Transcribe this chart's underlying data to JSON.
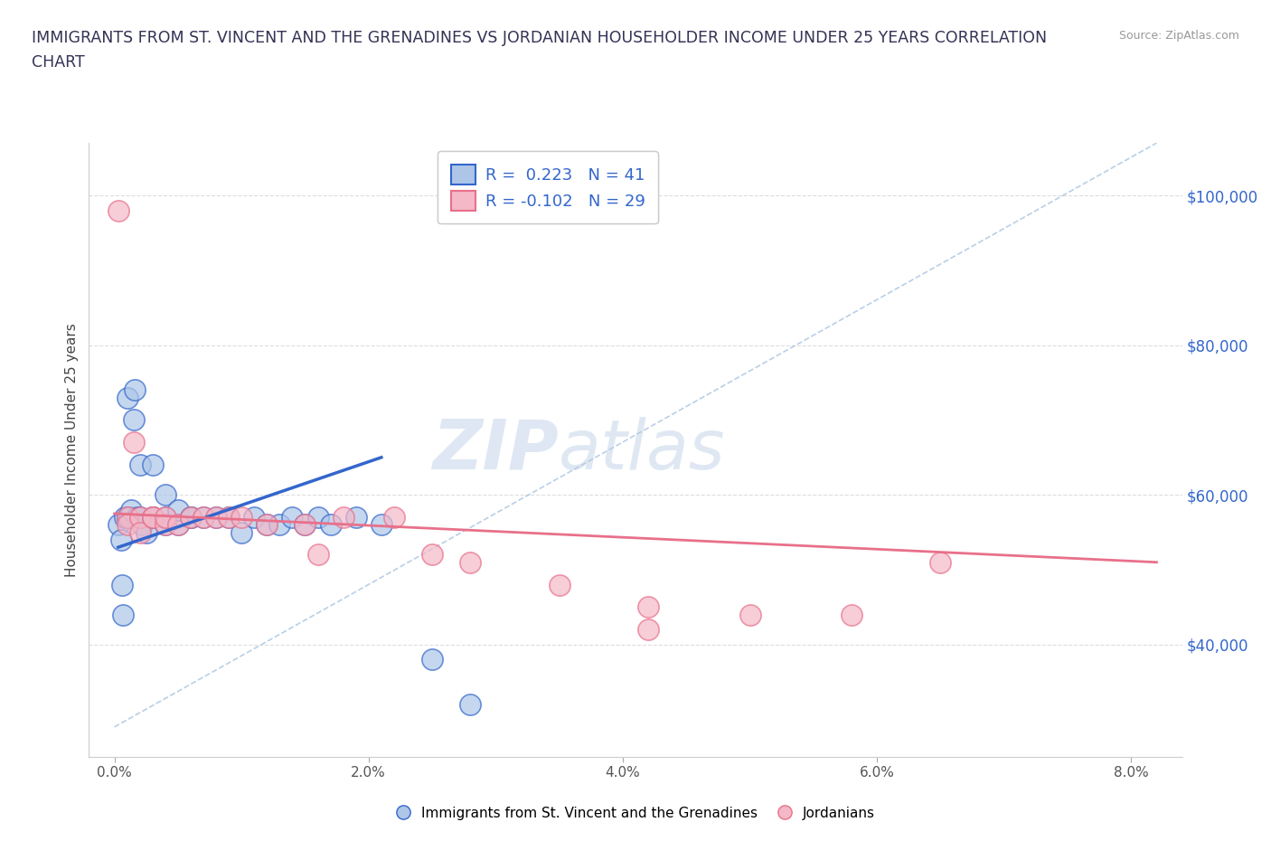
{
  "title_line1": "IMMIGRANTS FROM ST. VINCENT AND THE GRENADINES VS JORDANIAN HOUSEHOLDER INCOME UNDER 25 YEARS CORRELATION",
  "title_line2": "CHART",
  "source_text": "Source: ZipAtlas.com",
  "ylabel": "Householder Income Under 25 years",
  "xlabel_ticks": [
    "0.0%",
    "2.0%",
    "4.0%",
    "6.0%",
    "8.0%"
  ],
  "xlabel_vals": [
    0.0,
    0.02,
    0.04,
    0.06,
    0.08
  ],
  "ylabel_ticks": [
    "$40,000",
    "$60,000",
    "$80,000",
    "$100,000"
  ],
  "ylabel_vals": [
    40000,
    60000,
    80000,
    100000
  ],
  "xmin": -0.002,
  "xmax": 0.084,
  "ymin": 25000,
  "ymax": 107000,
  "R_blue": 0.223,
  "N_blue": 41,
  "R_pink": -0.102,
  "N_pink": 29,
  "blue_color": "#adc6e8",
  "pink_color": "#f4b8c8",
  "trend_blue_color": "#3366CC",
  "trend_pink_color": "#E8708A",
  "diagonal_color": "#a8c4e0",
  "watermark_zip": "ZIP",
  "watermark_atlas": "atlas",
  "legend_blue_label": "Immigrants from St. Vincent and the Grenadines",
  "legend_pink_label": "Jordanians",
  "blue_scatter_x": [
    0.0003,
    0.0005,
    0.0006,
    0.0007,
    0.0008,
    0.001,
    0.001,
    0.0012,
    0.0013,
    0.0015,
    0.0016,
    0.0018,
    0.002,
    0.002,
    0.0022,
    0.0025,
    0.003,
    0.003,
    0.003,
    0.004,
    0.004,
    0.004,
    0.005,
    0.005,
    0.006,
    0.006,
    0.007,
    0.008,
    0.009,
    0.01,
    0.011,
    0.012,
    0.013,
    0.014,
    0.015,
    0.016,
    0.017,
    0.019,
    0.021,
    0.025,
    0.028
  ],
  "blue_scatter_y": [
    56000,
    54000,
    48000,
    44000,
    57000,
    57000,
    73000,
    57000,
    58000,
    70000,
    74000,
    57000,
    57000,
    64000,
    56000,
    55000,
    57000,
    57000,
    64000,
    56000,
    57000,
    60000,
    56000,
    58000,
    57000,
    57000,
    57000,
    57000,
    57000,
    55000,
    57000,
    56000,
    56000,
    57000,
    56000,
    57000,
    56000,
    57000,
    56000,
    38000,
    32000
  ],
  "pink_scatter_x": [
    0.0003,
    0.001,
    0.001,
    0.0015,
    0.002,
    0.002,
    0.003,
    0.003,
    0.004,
    0.004,
    0.005,
    0.006,
    0.007,
    0.008,
    0.009,
    0.01,
    0.012,
    0.015,
    0.016,
    0.018,
    0.022,
    0.025,
    0.028,
    0.035,
    0.042,
    0.042,
    0.05,
    0.058,
    0.065
  ],
  "pink_scatter_y": [
    98000,
    57000,
    56000,
    67000,
    57000,
    55000,
    57000,
    57000,
    56000,
    57000,
    56000,
    57000,
    57000,
    57000,
    57000,
    57000,
    56000,
    56000,
    52000,
    57000,
    57000,
    52000,
    51000,
    48000,
    42000,
    45000,
    44000,
    44000,
    51000
  ],
  "blue_trend_x": [
    0.0003,
    0.021
  ],
  "blue_trend_y": [
    53000,
    65000
  ],
  "pink_trend_x": [
    0.0,
    0.082
  ],
  "pink_trend_y": [
    57500,
    51000
  ]
}
